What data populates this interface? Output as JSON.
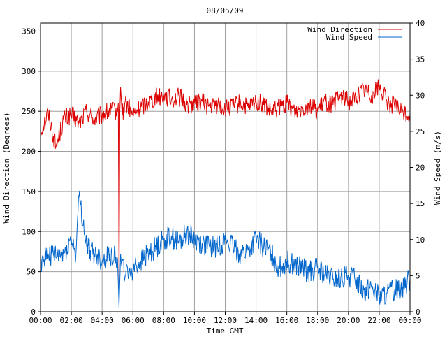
{
  "chart_data": {
    "type": "line",
    "title": "08/05/09",
    "xlabel": "Time GMT",
    "ylabel_left": "Wind Direction (Degrees)",
    "ylabel_right": "Wind Speed (m/s)",
    "x_ticks": [
      "00:00",
      "02:00",
      "04:00",
      "06:00",
      "08:00",
      "10:00",
      "12:00",
      "14:00",
      "16:00",
      "18:00",
      "20:00",
      "22:00",
      "00:00"
    ],
    "y_left_ticks": [
      "0",
      "50",
      "100",
      "150",
      "200",
      "250",
      "300",
      "350"
    ],
    "y_right_ticks": [
      "0",
      "5",
      "10",
      "15",
      "20",
      "25",
      "30",
      "35",
      "40"
    ],
    "xlim_hours": [
      0,
      24
    ],
    "ylim_left": [
      0,
      360
    ],
    "ylim_right": [
      0,
      40
    ],
    "grid": true,
    "legend_position": "top-right",
    "series": [
      {
        "name": "Wind Direction",
        "axis": "left",
        "color": "#dd0000",
        "x_hours": [
          0,
          0.5,
          1,
          1.5,
          2,
          2.5,
          3,
          3.5,
          4,
          4.5,
          5,
          5.05,
          5.1,
          5.15,
          5.2,
          5.3,
          5.5,
          6,
          6.5,
          7,
          7.5,
          8,
          8.5,
          9,
          9.5,
          10,
          10.5,
          11,
          11.5,
          12,
          12.5,
          13,
          13.5,
          14,
          14.5,
          15,
          15.5,
          16,
          16.5,
          17,
          17.5,
          18,
          18.5,
          19,
          19.5,
          20,
          20.5,
          21,
          21.5,
          22,
          22.5,
          23,
          23.5,
          24
        ],
        "values": [
          225,
          248,
          205,
          240,
          245,
          235,
          250,
          240,
          245,
          250,
          250,
          260,
          22,
          250,
          280,
          245,
          262,
          245,
          255,
          262,
          268,
          270,
          265,
          268,
          258,
          260,
          262,
          255,
          258,
          252,
          256,
          260,
          254,
          262,
          258,
          248,
          255,
          260,
          250,
          255,
          258,
          250,
          262,
          258,
          270,
          262,
          268,
          278,
          270,
          282,
          262,
          256,
          250,
          245
        ]
      },
      {
        "name": "Wind Speed",
        "axis": "right",
        "color": "#0066cc",
        "x_hours": [
          0,
          0.5,
          1,
          1.5,
          2,
          2.3,
          2.5,
          3,
          3.5,
          4,
          4.5,
          5,
          5.1,
          5.2,
          5.5,
          6,
          6.5,
          7,
          7.5,
          8,
          8.5,
          9,
          9.5,
          10,
          10.5,
          11,
          11.5,
          12,
          12.5,
          13,
          13.5,
          14,
          14.5,
          15,
          15.5,
          16,
          16.5,
          17,
          17.5,
          18,
          18.5,
          19,
          19.5,
          20,
          20.5,
          21,
          21.5,
          22,
          22.5,
          23,
          23.5,
          24
        ],
        "values": [
          7,
          8,
          7.5,
          8,
          10,
          8,
          16,
          9,
          8,
          7,
          8,
          7.5,
          0.5,
          8,
          5,
          6,
          7,
          8,
          9,
          10,
          10.5,
          9.5,
          11,
          10,
          9.5,
          9,
          9,
          10,
          9,
          8,
          8.5,
          10,
          9,
          8,
          6,
          7,
          6.5,
          6,
          5.5,
          6,
          5,
          4.5,
          4.5,
          5,
          4.5,
          3,
          3.5,
          2,
          2.5,
          3,
          3.5,
          4.5
        ]
      }
    ]
  }
}
